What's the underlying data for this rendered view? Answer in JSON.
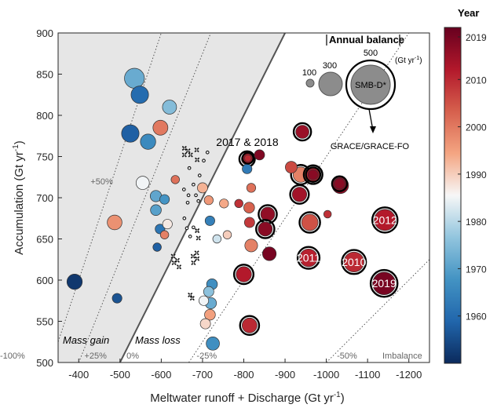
{
  "chart_data": {
    "type": "scatter",
    "xlabel": "Meltwater runoff + Discharge (Gt yr",
    "xlabel_sup": "-1",
    "xlabel_end": ")",
    "ylabel": "Accumulation  (Gt yr",
    "ylabel_sup": "-1",
    "ylabel_end": ")",
    "x_reversed": true,
    "xlim": [
      -350,
      -1250
    ],
    "ylim": [
      500,
      900
    ],
    "xticks": [
      -400,
      -500,
      -600,
      -700,
      -800,
      -900,
      -1000,
      -1100,
      -1200
    ],
    "yticks": [
      500,
      550,
      600,
      650,
      700,
      750,
      800,
      850,
      900
    ],
    "grid": false,
    "colorbar": {
      "title": "Year",
      "range": [
        1950,
        2021
      ],
      "ticks": [
        1960,
        1970,
        1980,
        1990,
        2000,
        2010,
        2019
      ],
      "colors": [
        "#0b2a5c",
        "#2166ac",
        "#4393c3",
        "#92c5de",
        "#f7f7f7",
        "#f4a582",
        "#d6604d",
        "#b2182b",
        "#67001f"
      ]
    },
    "balance_lines": [
      {
        "label": "+50%",
        "k": 1.5,
        "style": "dotted"
      },
      {
        "label": "+25%",
        "k": 1.25,
        "style": "dotted"
      },
      {
        "label": "0%",
        "k": 1.0,
        "style": "solid"
      },
      {
        "label": "-25%",
        "k": 0.75,
        "style": "dotted"
      },
      {
        "label": "-50%",
        "k": 0.5,
        "style": "dotted"
      },
      {
        "label": "-75%",
        "k": 0.25,
        "style": "dotted"
      },
      {
        "label": "-100%",
        "k": 0.0,
        "style": "dotted"
      },
      {
        "label": "Imbalance",
        "k": -0.25,
        "style": "dotted"
      }
    ],
    "region_labels": {
      "gain": "Mass gain",
      "loss": "Mass loss"
    },
    "annotation_2017_2018": "2017 & 2018",
    "legend": {
      "title": "Annual balance",
      "unit": "(Gt yr",
      "unit_sup": "-1",
      "unit_end": ")",
      "sizes": [
        100,
        300,
        500
      ],
      "smb_label": "SMB-D*",
      "grace_label": "GRACE/GRACE-FO"
    },
    "points": [
      {
        "x": -535,
        "y": 845,
        "bal": 340,
        "year": 1972
      },
      {
        "x": -548,
        "y": 825,
        "bal": 260,
        "year": 1960
      },
      {
        "x": -620,
        "y": 810,
        "bal": 170,
        "year": 1975
      },
      {
        "x": -525,
        "y": 778,
        "bal": 260,
        "year": 1958
      },
      {
        "x": -598,
        "y": 785,
        "bal": 190,
        "year": 2000
      },
      {
        "x": -568,
        "y": 768,
        "bal": 200,
        "year": 1966
      },
      {
        "x": -555,
        "y": 718,
        "bal": 150,
        "year": 1985
      },
      {
        "x": -487,
        "y": 670,
        "bal": 185,
        "year": 1997
      },
      {
        "x": -390,
        "y": 598,
        "bal": 200,
        "year": 1952
      },
      {
        "x": -493,
        "y": 578,
        "bal": 80,
        "year": 1956
      },
      {
        "x": -587,
        "y": 702,
        "bal": 110,
        "year": 1971
      },
      {
        "x": -608,
        "y": 698,
        "bal": 80,
        "year": 1968
      },
      {
        "x": -587,
        "y": 685,
        "bal": 100,
        "year": 1970
      },
      {
        "x": -597,
        "y": 662,
        "bal": 80,
        "year": 1962
      },
      {
        "x": -615,
        "y": 668,
        "bal": 80,
        "year": 1987
      },
      {
        "x": -608,
        "y": 655,
        "bal": 60,
        "year": 1999
      },
      {
        "x": -590,
        "y": 640,
        "bal": 60,
        "year": 1958
      },
      {
        "x": -634,
        "y": 722,
        "bal": 60,
        "year": 2001
      },
      {
        "x": -700,
        "y": 712,
        "bal": 90,
        "year": 1993
      },
      {
        "x": -715,
        "y": 697,
        "bal": 70,
        "year": 1996
      },
      {
        "x": -718,
        "y": 672,
        "bal": 80,
        "year": 1964
      },
      {
        "x": -752,
        "y": 693,
        "bal": 70,
        "year": 1994
      },
      {
        "x": -735,
        "y": 650,
        "bal": 60,
        "year": 1982
      },
      {
        "x": -760,
        "y": 655,
        "bal": 60,
        "year": 1990
      },
      {
        "x": -723,
        "y": 595,
        "bal": 100,
        "year": 1967
      },
      {
        "x": -715,
        "y": 586,
        "bal": 90,
        "year": 1976
      },
      {
        "x": -720,
        "y": 572,
        "bal": 110,
        "year": 1972
      },
      {
        "x": -703,
        "y": 575,
        "bal": 80,
        "year": 1985
      },
      {
        "x": -718,
        "y": 558,
        "bal": 100,
        "year": 1995
      },
      {
        "x": -707,
        "y": 547,
        "bal": 90,
        "year": 1989
      },
      {
        "x": -725,
        "y": 523,
        "bal": 150,
        "year": 1967
      },
      {
        "x": -808,
        "y": 735,
        "bal": 80,
        "year": 1963
      },
      {
        "x": -818,
        "y": 712,
        "bal": 70,
        "year": 2001
      },
      {
        "x": -788,
        "y": 693,
        "bal": 60,
        "year": 2009
      },
      {
        "x": -813,
        "y": 688,
        "bal": 100,
        "year": 2003
      },
      {
        "x": -814,
        "y": 670,
        "bal": 90,
        "year": 2008
      },
      {
        "x": -818,
        "y": 642,
        "bal": 140,
        "year": 1999
      },
      {
        "x": -814,
        "y": 545,
        "bal": 190,
        "year": 2010,
        "ring": true
      },
      {
        "x": -800,
        "y": 607,
        "bal": 200,
        "year": 2012,
        "ring": true
      },
      {
        "x": -808,
        "y": 747,
        "bal": 110,
        "year": 2012,
        "ring": true
      },
      {
        "x": -810,
        "y": 748,
        "bal": 40,
        "year": 2010,
        "ring": true
      },
      {
        "x": -838,
        "y": 752,
        "bal": 90,
        "year": 2018
      },
      {
        "x": -942,
        "y": 780,
        "bal": 150,
        "year": 2015,
        "ring": true
      },
      {
        "x": -915,
        "y": 737,
        "bal": 120,
        "year": 2006
      },
      {
        "x": -938,
        "y": 728,
        "bal": 200,
        "year": 1999,
        "ring": true
      },
      {
        "x": -968,
        "y": 728,
        "bal": 180,
        "year": 2011,
        "ring": true
      },
      {
        "x": -968,
        "y": 728,
        "bal": 90,
        "year": 2017,
        "ring": true
      },
      {
        "x": -935,
        "y": 704,
        "bal": 180,
        "year": 2014,
        "ring": true
      },
      {
        "x": -858,
        "y": 680,
        "bal": 170,
        "year": 2016,
        "ring": true
      },
      {
        "x": -852,
        "y": 662,
        "bal": 170,
        "year": 2017,
        "ring": true
      },
      {
        "x": -960,
        "y": 670,
        "bal": 230,
        "year": 2005,
        "ring": true
      },
      {
        "x": -1034,
        "y": 715,
        "bal": 230,
        "year": 2016
      },
      {
        "x": -1032,
        "y": 717,
        "bal": 100,
        "year": 2017,
        "ring": true
      },
      {
        "x": -1003,
        "y": 680,
        "bal": 50,
        "year": 2009
      },
      {
        "x": -862,
        "y": 632,
        "bal": 160,
        "year": 2019
      },
      {
        "x": -957,
        "y": 627,
        "bal": 270,
        "year": 2011,
        "ring": true,
        "label": "2011"
      },
      {
        "x": -1067,
        "y": 622,
        "bal": 340,
        "year": 2010,
        "ring": true,
        "label": "2010"
      },
      {
        "x": -1142,
        "y": 673,
        "bal": 380,
        "year": 2012,
        "ring": true,
        "label": "2012"
      },
      {
        "x": -1140,
        "y": 596,
        "bal": 440,
        "year": 2019,
        "ring": true,
        "label": "2019"
      }
    ],
    "small_markers": [
      {
        "x": -656,
        "y": 760,
        "style": "plus"
      },
      {
        "x": -656,
        "y": 752,
        "style": "plus"
      },
      {
        "x": -665,
        "y": 757,
        "style": "plus"
      },
      {
        "x": -671,
        "y": 752,
        "style": "plus"
      },
      {
        "x": -686,
        "y": 758,
        "style": "plus"
      },
      {
        "x": -687,
        "y": 746,
        "style": "plus"
      },
      {
        "x": -712,
        "y": 755,
        "style": "dot"
      },
      {
        "x": -703,
        "y": 745,
        "style": "dot"
      },
      {
        "x": -693,
        "y": 727,
        "style": "dot"
      },
      {
        "x": -668,
        "y": 736,
        "style": "dot"
      },
      {
        "x": -678,
        "y": 716,
        "style": "dot"
      },
      {
        "x": -684,
        "y": 703,
        "style": "dot"
      },
      {
        "x": -690,
        "y": 696,
        "style": "dot"
      },
      {
        "x": -666,
        "y": 703,
        "style": "dot"
      },
      {
        "x": -655,
        "y": 710,
        "style": "dot"
      },
      {
        "x": -664,
        "y": 694,
        "style": "dot"
      },
      {
        "x": -656,
        "y": 675,
        "style": "dot"
      },
      {
        "x": -662,
        "y": 663,
        "style": "dot"
      },
      {
        "x": -678,
        "y": 664,
        "style": "dot"
      },
      {
        "x": -670,
        "y": 653,
        "style": "dot"
      },
      {
        "x": -687,
        "y": 660,
        "style": "plus"
      },
      {
        "x": -690,
        "y": 651,
        "style": "plus"
      },
      {
        "x": -686,
        "y": 633,
        "style": "plus"
      },
      {
        "x": -687,
        "y": 626,
        "style": "plus"
      },
      {
        "x": -677,
        "y": 629,
        "style": "plus"
      },
      {
        "x": -678,
        "y": 621,
        "style": "plus"
      },
      {
        "x": -629,
        "y": 629,
        "style": "plus"
      },
      {
        "x": -631,
        "y": 621,
        "style": "plus"
      },
      {
        "x": -639,
        "y": 624,
        "style": "plus"
      },
      {
        "x": -643,
        "y": 616,
        "style": "plus"
      },
      {
        "x": -670,
        "y": 582,
        "style": "plus"
      },
      {
        "x": -675,
        "y": 578,
        "style": "plus"
      }
    ]
  }
}
